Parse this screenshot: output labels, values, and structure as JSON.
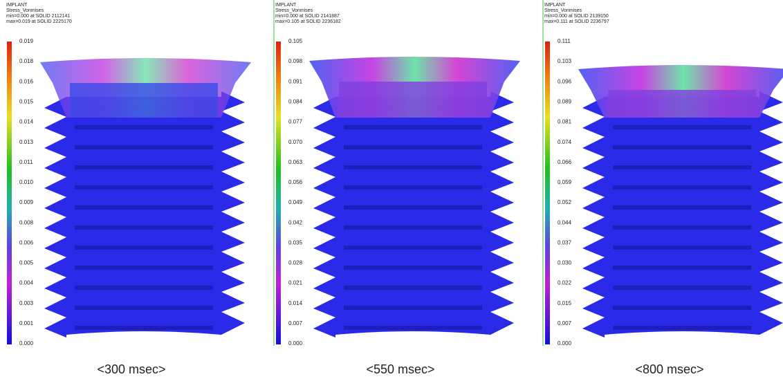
{
  "panels": [
    {
      "header": [
        "IMPLANT",
        "Stress_Vonmises",
        "min=0.000 at SOLID 2112141",
        "max=0.019 at SOLID 2225170"
      ],
      "scale_labels": [
        "0.019",
        "0.018",
        "0.016",
        "0.015",
        "0.014",
        "0.013",
        "0.011",
        "0.010",
        "0.009",
        "0.008",
        "0.006",
        "0.005",
        "0.004",
        "0.003",
        "0.001",
        "0.000"
      ],
      "caption": "<300 msec>"
    },
    {
      "header": [
        "IMPLANT",
        "Stress_Vonmises",
        "min=0.000 at SOLID 2141887",
        "max=0.105 at SOLID 2236182"
      ],
      "scale_labels": [
        "0.105",
        "0.098",
        "0.091",
        "0.084",
        "0.077",
        "0.070",
        "0.063",
        "0.056",
        "0.049",
        "0.042",
        "0.035",
        "0.028",
        "0.021",
        "0.014",
        "0.007",
        "0.000"
      ],
      "caption": "<550 msec>"
    },
    {
      "header": [
        "IMPLANT",
        "Stress_Vonmises",
        "min=0.000 at SOLID 2139150",
        "max=0.111 at SOLID 2236797"
      ],
      "scale_labels": [
        "0.111",
        "0.103",
        "0.096",
        "0.089",
        "0.081",
        "0.074",
        "0.066",
        "0.059",
        "0.052",
        "0.044",
        "0.037",
        "0.030",
        "0.022",
        "0.015",
        "0.007",
        "0.000"
      ],
      "caption": "<800 msec>"
    }
  ]
}
